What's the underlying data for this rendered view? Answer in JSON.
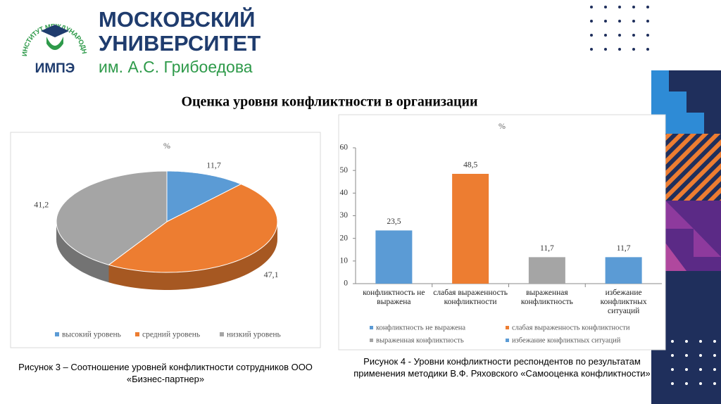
{
  "header": {
    "ring_text": "ИНСТИТУТ МЕЖДУНАРОДНОЙ ЭКОНОМИКИ ЛИДЕРСТВА И МЕНЕДЖМЕНТА",
    "logo_text": "ИМПЭ",
    "university_line1": "МОСКОВСКИЙ",
    "university_line2": "УНИВЕРСИТЕТ",
    "university_line3": "им. А.С. Грибоедова"
  },
  "slide_title": "Оценка уровня конфликтности в организации",
  "chart_data": [
    {
      "type": "pie",
      "title": "%",
      "categories": [
        "высокий уровень",
        "средний уровень",
        "низкий уровень"
      ],
      "values": [
        11.7,
        47.1,
        41.2
      ],
      "value_labels": [
        "11,7",
        "47,1",
        "41,2"
      ],
      "colors": [
        "#5b9bd5",
        "#ed7d31",
        "#a5a5a5"
      ]
    },
    {
      "type": "bar",
      "title": "%",
      "categories": [
        "конфликтность не выражена",
        "слабая выраженность конфликтности",
        "выраженная конфликтность",
        "избежание конфликтных ситуаций"
      ],
      "values": [
        23.5,
        48.5,
        11.7,
        11.7
      ],
      "value_labels": [
        "23,5",
        "48,5",
        "11,7",
        "11,7"
      ],
      "colors": [
        "#5b9bd5",
        "#ed7d31",
        "#a5a5a5",
        "#5b9bd5"
      ],
      "ylim": [
        0,
        60
      ],
      "yticks": [
        0,
        10,
        20,
        30,
        40,
        50,
        60
      ]
    }
  ],
  "captions": [
    "Рисунок 3 – Соотношение уровней конфликтности сотрудников ООО «Бизнес-партнер»",
    "Рисунок 4 - Уровни конфликтности респондентов по результатам применения методики В.Ф. Ряховского «Самооценка конфликтности»"
  ]
}
